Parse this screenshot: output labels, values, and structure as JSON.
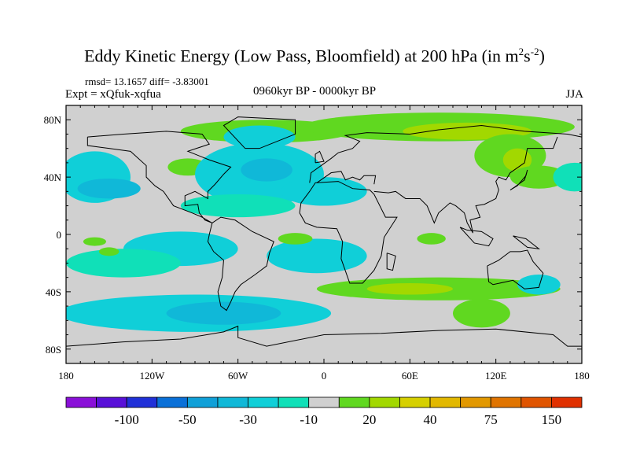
{
  "title": "Eddy Kinetic Energy (Low Pass, Bloomfield) at 200 hPa (in m",
  "title_units_sup1": "2",
  "title_units_mid": "s",
  "title_units_sup2": "-2",
  "title_units_end": ")",
  "stats": "rmsd= 13.1657 diff= -3.83001",
  "experiment": "Expt = xQfuk-xqfua",
  "period": "0960kyr BP - 0000kyr BP",
  "season": "JJA",
  "chart_data": {
    "type": "heatmap",
    "projection": "cylindrical equidistant",
    "lat_ticks": [
      {
        "v": 80,
        "label": "80N"
      },
      {
        "v": 40,
        "label": "40N"
      },
      {
        "v": 0,
        "label": "0"
      },
      {
        "v": -40,
        "label": "40S"
      },
      {
        "v": -80,
        "label": "80S"
      }
    ],
    "lon_ticks": [
      {
        "v": -180,
        "label": "180"
      },
      {
        "v": -120,
        "label": "120W"
      },
      {
        "v": -60,
        "label": "60W"
      },
      {
        "v": 0,
        "label": "0"
      },
      {
        "v": 60,
        "label": "60E"
      },
      {
        "v": 120,
        "label": "120E"
      },
      {
        "v": 180,
        "label": "180"
      }
    ],
    "colorbar": {
      "colors": [
        "#8a10d8",
        "#5810d8",
        "#2030d8",
        "#0a70d8",
        "#10a0d8",
        "#10b8d8",
        "#10cfd8",
        "#10e0b8",
        "#d0d0d0",
        "#60d820",
        "#a2d800",
        "#d6d000",
        "#e2b800",
        "#e29800",
        "#e07400",
        "#e05400",
        "#e03000"
      ],
      "labels": [
        {
          "boundary": 2,
          "label": "-100"
        },
        {
          "boundary": 4,
          "label": "-50"
        },
        {
          "boundary": 6,
          "label": "-30"
        },
        {
          "boundary": 8,
          "label": "-10"
        },
        {
          "boundary": 10,
          "label": "20"
        },
        {
          "boundary": 12,
          "label": "40"
        },
        {
          "boundary": 14,
          "label": "75"
        },
        {
          "boundary": 16,
          "label": "150"
        }
      ]
    },
    "regions": [
      {
        "lon": -40,
        "lat": 72,
        "rlon": 60,
        "rlat": 8,
        "level": 9
      },
      {
        "lon": 80,
        "lat": 75,
        "rlon": 95,
        "rlat": 10,
        "level": 9
      },
      {
        "lon": 100,
        "lat": 72,
        "rlon": 45,
        "rlat": 6,
        "level": 10
      },
      {
        "lon": 130,
        "lat": 55,
        "rlon": 25,
        "rlat": 15,
        "level": 9
      },
      {
        "lon": 135,
        "lat": 52,
        "rlon": 10,
        "rlat": 8,
        "level": 10
      },
      {
        "lon": 150,
        "lat": 40,
        "rlon": 20,
        "rlat": 8,
        "level": 9
      },
      {
        "lon": -160,
        "lat": 40,
        "rlon": 25,
        "rlat": 18,
        "level": 6
      },
      {
        "lon": -150,
        "lat": 32,
        "rlon": 22,
        "rlat": 7,
        "level": 5
      },
      {
        "lon": -95,
        "lat": 47,
        "rlon": 14,
        "rlat": 6,
        "level": 9
      },
      {
        "lon": -45,
        "lat": 42,
        "rlon": 45,
        "rlat": 22,
        "level": 6
      },
      {
        "lon": -40,
        "lat": 45,
        "rlon": 18,
        "rlat": 8,
        "level": 5
      },
      {
        "lon": -45,
        "lat": 68,
        "rlon": 25,
        "rlat": 8,
        "level": 6
      },
      {
        "lon": 0,
        "lat": 30,
        "rlon": 30,
        "rlat": 10,
        "level": 6
      },
      {
        "lon": -60,
        "lat": 20,
        "rlon": 40,
        "rlat": 8,
        "level": 7
      },
      {
        "lon": 175,
        "lat": 40,
        "rlon": 15,
        "rlat": 10,
        "level": 7
      },
      {
        "lon": -100,
        "lat": -10,
        "rlon": 40,
        "rlat": 12,
        "level": 6
      },
      {
        "lon": -5,
        "lat": -15,
        "rlon": 35,
        "rlat": 12,
        "level": 6
      },
      {
        "lon": -140,
        "lat": -20,
        "rlon": 40,
        "rlat": 10,
        "level": 7
      },
      {
        "lon": -20,
        "lat": -3,
        "rlon": 12,
        "rlat": 4,
        "level": 9
      },
      {
        "lon": 75,
        "lat": -3,
        "rlon": 10,
        "rlat": 4,
        "level": 9
      },
      {
        "lon": -150,
        "lat": -12,
        "rlon": 7,
        "rlat": 3,
        "level": 9
      },
      {
        "lon": -90,
        "lat": -55,
        "rlon": 95,
        "rlat": 13,
        "level": 6
      },
      {
        "lon": -70,
        "lat": -55,
        "rlon": 40,
        "rlat": 8,
        "level": 5
      },
      {
        "lon": 80,
        "lat": -38,
        "rlon": 85,
        "rlat": 8,
        "level": 9
      },
      {
        "lon": 60,
        "lat": -38,
        "rlon": 30,
        "rlat": 4,
        "level": 10
      },
      {
        "lon": 110,
        "lat": -55,
        "rlon": 20,
        "rlat": 10,
        "level": 9
      },
      {
        "lon": 150,
        "lat": -35,
        "rlon": 15,
        "rlat": 7,
        "level": 6
      },
      {
        "lon": -160,
        "lat": -5,
        "rlon": 8,
        "rlat": 3,
        "level": 9
      }
    ]
  }
}
